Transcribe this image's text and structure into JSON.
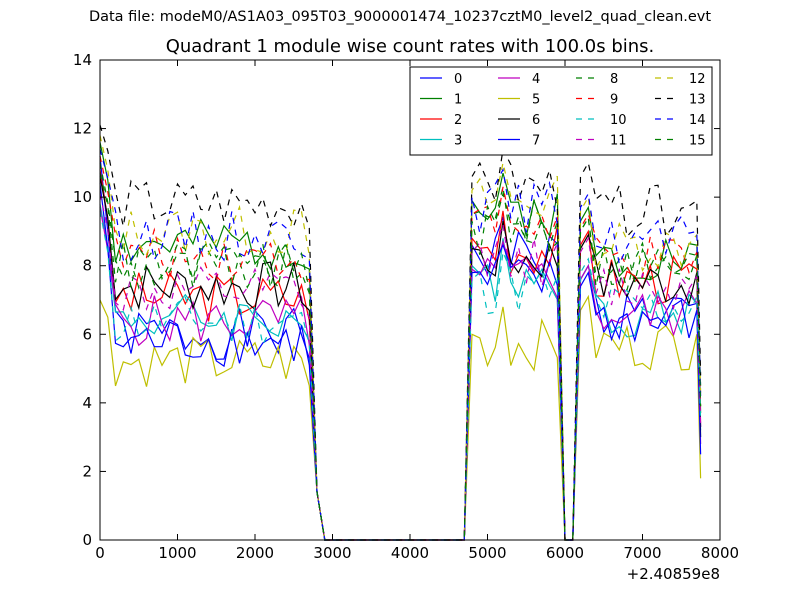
{
  "figure": {
    "suptitle": "Data file: modeM0/AS1A03_095T03_9000001474_10237cztM0_level2_quad_clean.evt"
  },
  "chart_data": {
    "type": "line",
    "title": "Quadrant 1 module wise count rates with 100.0s bins.",
    "xlabel": "",
    "ylabel": "",
    "xlim": [
      0,
      8000
    ],
    "ylim": [
      0,
      14
    ],
    "x_offset_label": "+2.40859e8",
    "x_ticks": [
      0,
      1000,
      2000,
      3000,
      4000,
      5000,
      6000,
      7000,
      8000
    ],
    "y_ticks": [
      0,
      2,
      4,
      6,
      8,
      10,
      12,
      14
    ],
    "x_tick_labels": [
      "0",
      "1000",
      "2000",
      "3000",
      "4000",
      "5000",
      "6000",
      "7000",
      "8000"
    ],
    "y_tick_labels": [
      "0",
      "2",
      "4",
      "6",
      "8",
      "10",
      "12",
      "14"
    ],
    "legend_location": "top-right",
    "legend_columns": 4,
    "bin_size_s": 100,
    "segments": [
      {
        "start": 0,
        "end": 2700,
        "step": 100
      },
      {
        "start": 4800,
        "end": 5900,
        "step": 100
      },
      {
        "start": 6200,
        "end": 7700,
        "step": 100
      }
    ],
    "drop_points": [
      2800,
      2900,
      4700,
      6000,
      6100,
      7750
    ],
    "series": [
      {
        "name": "0",
        "color": "#0000ff",
        "dashed": false,
        "base": [
          6.0,
          8.3,
          6.6
        ],
        "start": 11.2,
        "drop": 3.3
      },
      {
        "name": "1",
        "color": "#008000",
        "dashed": false,
        "base": [
          8.6,
          9.6,
          8.3
        ],
        "start": 11.6,
        "drop": 3.7
      },
      {
        "name": "2",
        "color": "#ff0000",
        "dashed": false,
        "base": [
          7.1,
          8.5,
          7.6
        ],
        "start": 10.8,
        "drop": 3.3
      },
      {
        "name": "3",
        "color": "#00bfbf",
        "dashed": false,
        "base": [
          6.5,
          7.7,
          6.6
        ],
        "start": 9.8,
        "drop": 3.2
      },
      {
        "name": "4",
        "color": "#bf00bf",
        "dashed": false,
        "base": [
          6.4,
          7.6,
          6.6
        ],
        "start": 9.7,
        "drop": 2.8
      },
      {
        "name": "5",
        "color": "#bfbf00",
        "dashed": false,
        "base": [
          5.2,
          5.7,
          5.7
        ],
        "start": 7.0,
        "drop": 1.8
      },
      {
        "name": "6",
        "color": "#000000",
        "dashed": false,
        "base": [
          7.4,
          8.2,
          7.5
        ],
        "start": 10.6,
        "drop": 3.0
      },
      {
        "name": "7",
        "color": "#0000ff",
        "dashed": false,
        "base": [
          5.8,
          7.5,
          6.4
        ],
        "start": 10.4,
        "drop": 2.5
      },
      {
        "name": "8",
        "color": "#008000",
        "dashed": true,
        "base": [
          7.9,
          9.2,
          8.0
        ],
        "start": 11.0,
        "drop": 4.5
      },
      {
        "name": "9",
        "color": "#ff0000",
        "dashed": true,
        "base": [
          8.3,
          9.2,
          8.1
        ],
        "start": 11.2,
        "drop": 3.9
      },
      {
        "name": "10",
        "color": "#00bfbf",
        "dashed": true,
        "base": [
          6.4,
          7.3,
          6.8
        ],
        "start": 9.6,
        "drop": 3.5
      },
      {
        "name": "11",
        "color": "#bf00bf",
        "dashed": true,
        "base": [
          7.2,
          8.1,
          7.4
        ],
        "start": 10.1,
        "drop": 3.4
      },
      {
        "name": "12",
        "color": "#bfbf00",
        "dashed": true,
        "base": [
          9.0,
          9.9,
          8.6
        ],
        "start": 11.8,
        "drop": 4.3
      },
      {
        "name": "13",
        "color": "#000000",
        "dashed": true,
        "base": [
          9.8,
          10.3,
          9.6
        ],
        "start": 12.1,
        "drop": 4.8
      },
      {
        "name": "14",
        "color": "#0000ff",
        "dashed": true,
        "base": [
          8.9,
          9.7,
          8.7
        ],
        "start": 11.4,
        "drop": 4.2
      },
      {
        "name": "15",
        "color": "#008000",
        "dashed": true,
        "base": [
          8.0,
          9.0,
          8.0
        ],
        "start": 10.7,
        "drop": 3.9
      }
    ]
  }
}
